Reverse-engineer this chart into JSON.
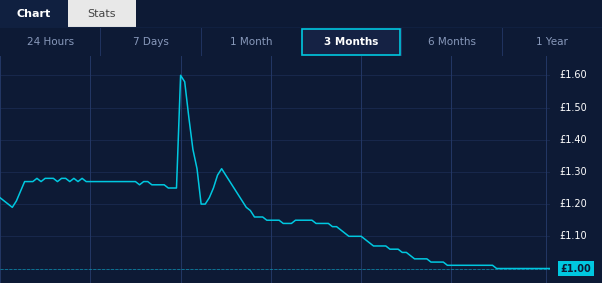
{
  "fig_w": 6.02,
  "fig_h": 2.83,
  "dpi": 100,
  "bg_color": "#102040",
  "bg_dark": "#0d1a35",
  "header_bg": "#f0f0f0",
  "tab_bar_bg": "#152244",
  "line_color": "#00c8e0",
  "grid_color": "#1e3260",
  "vline_color": "#253a6a",
  "text_color": "#ffffff",
  "tab_text_color": "#8899bb",
  "selected_tab_border": "#00c8e0",
  "last_price_bg": "#00c8e0",
  "last_price_text": "#0d1a35",
  "chart_tab_text": "Chart",
  "stats_tab_text": "Stats",
  "tabs": [
    "24 Hours",
    "7 Days",
    "1 Month",
    "3 Months",
    "6 Months",
    "1 Year"
  ],
  "selected_tab": 3,
  "yticks": [
    1.0,
    1.1,
    1.2,
    1.3,
    1.4,
    1.5,
    1.6
  ],
  "ylim": [
    0.955,
    1.66
  ],
  "last_price": 1.0,
  "vline_positions": [
    0,
    22,
    44,
    66,
    88,
    110,
    133
  ],
  "y_series": [
    1.22,
    1.21,
    1.2,
    1.19,
    1.21,
    1.24,
    1.27,
    1.27,
    1.27,
    1.28,
    1.27,
    1.28,
    1.28,
    1.28,
    1.27,
    1.28,
    1.28,
    1.27,
    1.28,
    1.27,
    1.28,
    1.27,
    1.27,
    1.27,
    1.27,
    1.27,
    1.27,
    1.27,
    1.27,
    1.27,
    1.27,
    1.27,
    1.27,
    1.27,
    1.26,
    1.27,
    1.27,
    1.26,
    1.26,
    1.26,
    1.26,
    1.25,
    1.25,
    1.25,
    1.6,
    1.58,
    1.47,
    1.37,
    1.31,
    1.2,
    1.2,
    1.22,
    1.25,
    1.29,
    1.31,
    1.29,
    1.27,
    1.25,
    1.23,
    1.21,
    1.19,
    1.18,
    1.16,
    1.16,
    1.16,
    1.15,
    1.15,
    1.15,
    1.15,
    1.14,
    1.14,
    1.14,
    1.15,
    1.15,
    1.15,
    1.15,
    1.15,
    1.14,
    1.14,
    1.14,
    1.14,
    1.13,
    1.13,
    1.12,
    1.11,
    1.1,
    1.1,
    1.1,
    1.1,
    1.09,
    1.08,
    1.07,
    1.07,
    1.07,
    1.07,
    1.06,
    1.06,
    1.06,
    1.05,
    1.05,
    1.04,
    1.03,
    1.03,
    1.03,
    1.03,
    1.02,
    1.02,
    1.02,
    1.02,
    1.01,
    1.01,
    1.01,
    1.01,
    1.01,
    1.01,
    1.01,
    1.01,
    1.01,
    1.01,
    1.01,
    1.01,
    1.0,
    1.0,
    1.0,
    1.0,
    1.0,
    1.0,
    1.0,
    1.0,
    1.0,
    1.0,
    1.0,
    1.0,
    1.0,
    1.0
  ]
}
